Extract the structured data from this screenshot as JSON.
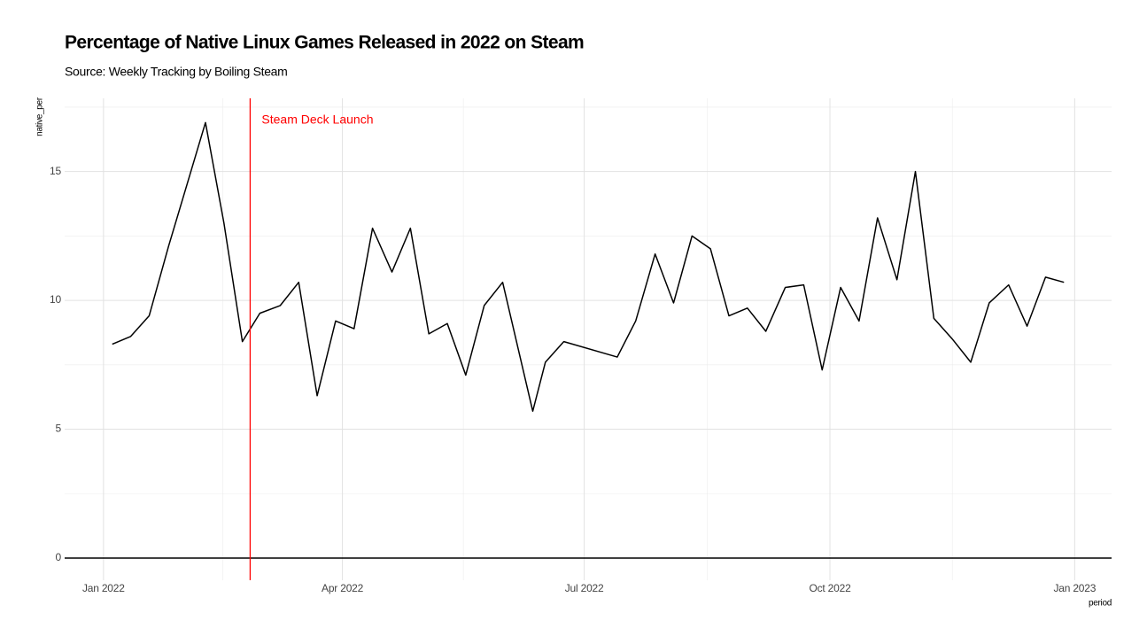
{
  "chart_data": {
    "type": "line",
    "title": "Percentage of Native Linux Games Released in 2022 on Steam",
    "subtitle": "Source: Weekly Tracking by Boiling Steam",
    "x_label": "period",
    "y_label": "native_per",
    "x": [
      2022.009,
      2022.028,
      2022.047,
      2022.067,
      2022.086,
      2022.105,
      2022.124,
      2022.143,
      2022.161,
      2022.182,
      2022.201,
      2022.22,
      2022.239,
      2022.258,
      2022.277,
      2022.297,
      2022.316,
      2022.335,
      2022.354,
      2022.373,
      2022.392,
      2022.411,
      2022.442,
      2022.455,
      2022.474,
      2022.529,
      2022.548,
      2022.568,
      2022.587,
      2022.606,
      2022.625,
      2022.644,
      2022.663,
      2022.682,
      2022.702,
      2022.721,
      2022.74,
      2022.759,
      2022.778,
      2022.797,
      2022.817,
      2022.836,
      2022.855,
      2022.874,
      2022.893,
      2022.912,
      2022.932,
      2022.951,
      2022.97,
      2022.989
    ],
    "series": [
      {
        "name": "native_per",
        "color": "#000000",
        "values": [
          8.3,
          8.6,
          9.4,
          12.1,
          14.5,
          16.9,
          13.0,
          8.4,
          9.5,
          9.8,
          10.7,
          6.3,
          9.2,
          8.9,
          12.8,
          11.1,
          12.8,
          8.7,
          9.1,
          7.1,
          9.8,
          10.7,
          5.7,
          7.6,
          8.4,
          7.8,
          9.2,
          11.8,
          9.9,
          12.5,
          12.0,
          9.4,
          9.7,
          8.8,
          10.5,
          10.6,
          7.3,
          10.5,
          9.2,
          13.2,
          10.8,
          15.0,
          9.3,
          8.5,
          7.6,
          9.9,
          10.6,
          9.0,
          10.9,
          10.7
        ]
      }
    ],
    "xlim": [
      2021.96,
      2023.038
    ],
    "xticks": [
      {
        "value": 2022.0,
        "label": "Jan 2022"
      },
      {
        "value": 2022.246,
        "label": "Apr 2022"
      },
      {
        "value": 2022.495,
        "label": "Jul 2022"
      },
      {
        "value": 2022.748,
        "label": "Oct 2022"
      },
      {
        "value": 2023.0,
        "label": "Jan 2023"
      }
    ],
    "ylim": [
      -0.86,
      17.84
    ],
    "yticks": [
      0,
      5,
      10,
      15
    ],
    "grid": true,
    "hline": {
      "value": 0,
      "color": "#000000"
    },
    "vline": {
      "value": 2022.151,
      "color": "#ff0000",
      "label": "Steam Deck Launch"
    }
  }
}
